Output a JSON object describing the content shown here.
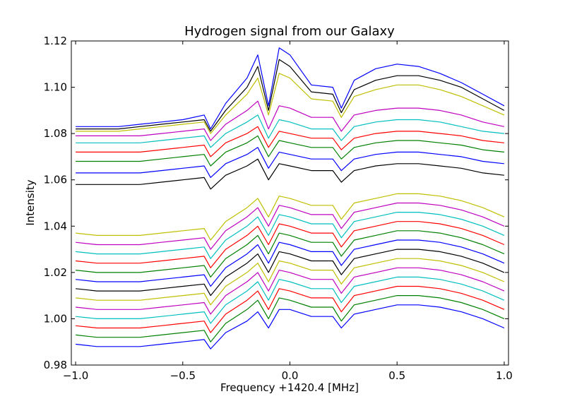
{
  "chart_data": {
    "type": "line",
    "title": "Hydrogen signal from our Galaxy",
    "xlabel": "Frequency +1420.4 [MHz]",
    "ylabel": "Intensity",
    "xlim": [
      -1.02,
      1.02
    ],
    "ylim": [
      0.98,
      1.12
    ],
    "grid": false,
    "x_ticks": [
      -1.0,
      -0.5,
      0.0,
      0.5,
      1.0
    ],
    "x_tick_labels": [
      "−1.0",
      "−0.5",
      "0.0",
      "0.5",
      "1.0"
    ],
    "y_ticks": [
      0.98,
      1.0,
      1.02,
      1.04,
      1.06,
      1.08,
      1.1,
      1.12
    ],
    "y_tick_labels": [
      "0.98",
      "1.00",
      "1.02",
      "1.04",
      "1.06",
      "1.08",
      "1.10",
      "1.12"
    ],
    "series_colors": [
      "#0000ff",
      "#008000",
      "#ff0000",
      "#00bfbf",
      "#bf00bf",
      "#bfbf00",
      "#000000"
    ],
    "x": [
      -1.0,
      -0.9,
      -0.8,
      -0.7,
      -0.6,
      -0.5,
      -0.4,
      -0.37,
      -0.3,
      -0.2,
      -0.15,
      -0.1,
      -0.05,
      0.0,
      0.1,
      0.2,
      0.24,
      0.3,
      0.4,
      0.5,
      0.6,
      0.7,
      0.8,
      0.9,
      1.0
    ],
    "series": [
      {
        "color": "#0000ff",
        "values": [
          0.989,
          0.988,
          0.988,
          0.988,
          0.989,
          0.99,
          0.991,
          0.987,
          0.994,
          0.999,
          1.003,
          0.996,
          1.004,
          1.004,
          1.001,
          1.001,
          0.996,
          1.002,
          1.004,
          1.006,
          1.006,
          1.005,
          1.003,
          1.0,
          0.996
        ]
      },
      {
        "color": "#008000",
        "values": [
          0.993,
          0.992,
          0.992,
          0.992,
          0.993,
          0.994,
          0.995,
          0.99,
          0.998,
          1.004,
          1.008,
          1.0,
          1.009,
          1.008,
          1.005,
          1.005,
          0.999,
          1.006,
          1.008,
          1.01,
          1.01,
          1.009,
          1.007,
          1.004,
          1.0
        ]
      },
      {
        "color": "#ff0000",
        "values": [
          0.997,
          0.996,
          0.996,
          0.996,
          0.997,
          0.998,
          0.999,
          0.994,
          1.002,
          1.008,
          1.012,
          1.004,
          1.013,
          1.012,
          1.009,
          1.009,
          1.003,
          1.01,
          1.012,
          1.014,
          1.014,
          1.013,
          1.011,
          1.008,
          1.004
        ]
      },
      {
        "color": "#00bfbf",
        "values": [
          1.001,
          1.0,
          1.0,
          1.0,
          1.001,
          1.002,
          1.003,
          0.998,
          1.006,
          1.012,
          1.016,
          1.008,
          1.017,
          1.016,
          1.013,
          1.013,
          1.007,
          1.014,
          1.016,
          1.018,
          1.018,
          1.017,
          1.015,
          1.012,
          1.008
        ]
      },
      {
        "color": "#bf00bf",
        "values": [
          1.005,
          1.004,
          1.004,
          1.004,
          1.005,
          1.006,
          1.007,
          1.002,
          1.01,
          1.016,
          1.02,
          1.012,
          1.021,
          1.02,
          1.017,
          1.017,
          1.011,
          1.018,
          1.02,
          1.022,
          1.022,
          1.021,
          1.019,
          1.016,
          1.012
        ]
      },
      {
        "color": "#bfbf00",
        "values": [
          1.009,
          1.008,
          1.008,
          1.008,
          1.009,
          1.01,
          1.011,
          1.006,
          1.014,
          1.02,
          1.024,
          1.016,
          1.025,
          1.024,
          1.021,
          1.021,
          1.015,
          1.022,
          1.024,
          1.026,
          1.026,
          1.025,
          1.023,
          1.02,
          1.016
        ]
      },
      {
        "color": "#000000",
        "values": [
          1.013,
          1.012,
          1.012,
          1.012,
          1.013,
          1.014,
          1.015,
          1.01,
          1.018,
          1.024,
          1.028,
          1.02,
          1.029,
          1.028,
          1.025,
          1.025,
          1.019,
          1.026,
          1.028,
          1.03,
          1.03,
          1.029,
          1.027,
          1.024,
          1.02
        ]
      },
      {
        "color": "#0000ff",
        "values": [
          1.017,
          1.016,
          1.016,
          1.016,
          1.017,
          1.018,
          1.019,
          1.014,
          1.022,
          1.028,
          1.032,
          1.024,
          1.033,
          1.032,
          1.029,
          1.029,
          1.023,
          1.03,
          1.032,
          1.034,
          1.034,
          1.033,
          1.031,
          1.028,
          1.024
        ]
      },
      {
        "color": "#008000",
        "values": [
          1.021,
          1.02,
          1.02,
          1.02,
          1.021,
          1.022,
          1.023,
          1.018,
          1.026,
          1.032,
          1.036,
          1.028,
          1.037,
          1.036,
          1.033,
          1.033,
          1.027,
          1.034,
          1.036,
          1.038,
          1.038,
          1.037,
          1.035,
          1.032,
          1.028
        ]
      },
      {
        "color": "#ff0000",
        "values": [
          1.025,
          1.024,
          1.024,
          1.024,
          1.025,
          1.026,
          1.027,
          1.022,
          1.03,
          1.036,
          1.04,
          1.032,
          1.041,
          1.04,
          1.037,
          1.037,
          1.031,
          1.038,
          1.04,
          1.042,
          1.042,
          1.041,
          1.039,
          1.036,
          1.032
        ]
      },
      {
        "color": "#00bfbf",
        "values": [
          1.029,
          1.028,
          1.028,
          1.028,
          1.029,
          1.03,
          1.031,
          1.026,
          1.034,
          1.04,
          1.044,
          1.036,
          1.045,
          1.044,
          1.041,
          1.041,
          1.035,
          1.042,
          1.044,
          1.046,
          1.046,
          1.045,
          1.043,
          1.04,
          1.036
        ]
      },
      {
        "color": "#bf00bf",
        "values": [
          1.033,
          1.032,
          1.032,
          1.032,
          1.033,
          1.034,
          1.035,
          1.03,
          1.038,
          1.044,
          1.048,
          1.04,
          1.049,
          1.048,
          1.045,
          1.045,
          1.039,
          1.046,
          1.048,
          1.05,
          1.05,
          1.049,
          1.047,
          1.044,
          1.04
        ]
      },
      {
        "color": "#bfbf00",
        "values": [
          1.037,
          1.036,
          1.036,
          1.036,
          1.037,
          1.038,
          1.039,
          1.034,
          1.042,
          1.048,
          1.052,
          1.044,
          1.053,
          1.052,
          1.049,
          1.049,
          1.043,
          1.05,
          1.052,
          1.054,
          1.054,
          1.053,
          1.051,
          1.048,
          1.044
        ]
      },
      {
        "color": "#000000",
        "values": [
          1.058,
          1.058,
          1.058,
          1.058,
          1.059,
          1.06,
          1.061,
          1.056,
          1.062,
          1.066,
          1.069,
          1.06,
          1.067,
          1.066,
          1.064,
          1.064,
          1.059,
          1.064,
          1.066,
          1.067,
          1.067,
          1.066,
          1.065,
          1.063,
          1.062
        ]
      },
      {
        "color": "#0000ff",
        "values": [
          1.063,
          1.063,
          1.063,
          1.063,
          1.064,
          1.065,
          1.066,
          1.061,
          1.067,
          1.071,
          1.074,
          1.065,
          1.072,
          1.071,
          1.069,
          1.069,
          1.064,
          1.069,
          1.071,
          1.072,
          1.072,
          1.071,
          1.07,
          1.068,
          1.067
        ]
      },
      {
        "color": "#008000",
        "values": [
          1.068,
          1.068,
          1.068,
          1.068,
          1.069,
          1.07,
          1.071,
          1.066,
          1.072,
          1.076,
          1.079,
          1.07,
          1.077,
          1.076,
          1.074,
          1.074,
          1.069,
          1.074,
          1.076,
          1.077,
          1.077,
          1.076,
          1.075,
          1.073,
          1.072
        ]
      },
      {
        "color": "#ff0000",
        "values": [
          1.072,
          1.072,
          1.072,
          1.072,
          1.073,
          1.074,
          1.075,
          1.07,
          1.076,
          1.08,
          1.083,
          1.074,
          1.081,
          1.08,
          1.078,
          1.078,
          1.073,
          1.078,
          1.08,
          1.081,
          1.081,
          1.08,
          1.079,
          1.077,
          1.076
        ]
      },
      {
        "color": "#00bfbf",
        "values": [
          1.076,
          1.076,
          1.076,
          1.076,
          1.077,
          1.078,
          1.079,
          1.074,
          1.08,
          1.085,
          1.088,
          1.078,
          1.086,
          1.085,
          1.082,
          1.082,
          1.077,
          1.083,
          1.085,
          1.086,
          1.086,
          1.085,
          1.083,
          1.081,
          1.08
        ]
      },
      {
        "color": "#bf00bf",
        "values": [
          1.079,
          1.079,
          1.079,
          1.079,
          1.08,
          1.081,
          1.082,
          1.077,
          1.084,
          1.09,
          1.094,
          1.082,
          1.092,
          1.091,
          1.087,
          1.087,
          1.081,
          1.088,
          1.09,
          1.091,
          1.091,
          1.09,
          1.088,
          1.085,
          1.083
        ]
      },
      {
        "color": "#bfbf00",
        "values": [
          1.081,
          1.081,
          1.081,
          1.082,
          1.083,
          1.084,
          1.085,
          1.08,
          1.088,
          1.097,
          1.104,
          1.088,
          1.106,
          1.104,
          1.095,
          1.094,
          1.087,
          1.096,
          1.099,
          1.101,
          1.101,
          1.099,
          1.096,
          1.092,
          1.088
        ]
      },
      {
        "color": "#000000",
        "values": [
          1.082,
          1.082,
          1.082,
          1.083,
          1.084,
          1.085,
          1.086,
          1.081,
          1.09,
          1.1,
          1.109,
          1.09,
          1.112,
          1.109,
          1.098,
          1.097,
          1.089,
          1.099,
          1.103,
          1.105,
          1.105,
          1.103,
          1.1,
          1.095,
          1.09
        ]
      },
      {
        "color": "#0000ff",
        "values": [
          1.083,
          1.083,
          1.083,
          1.084,
          1.085,
          1.086,
          1.088,
          1.082,
          1.093,
          1.104,
          1.114,
          1.092,
          1.117,
          1.114,
          1.101,
          1.1,
          1.091,
          1.103,
          1.108,
          1.11,
          1.109,
          1.106,
          1.102,
          1.097,
          1.092
        ]
      }
    ]
  }
}
